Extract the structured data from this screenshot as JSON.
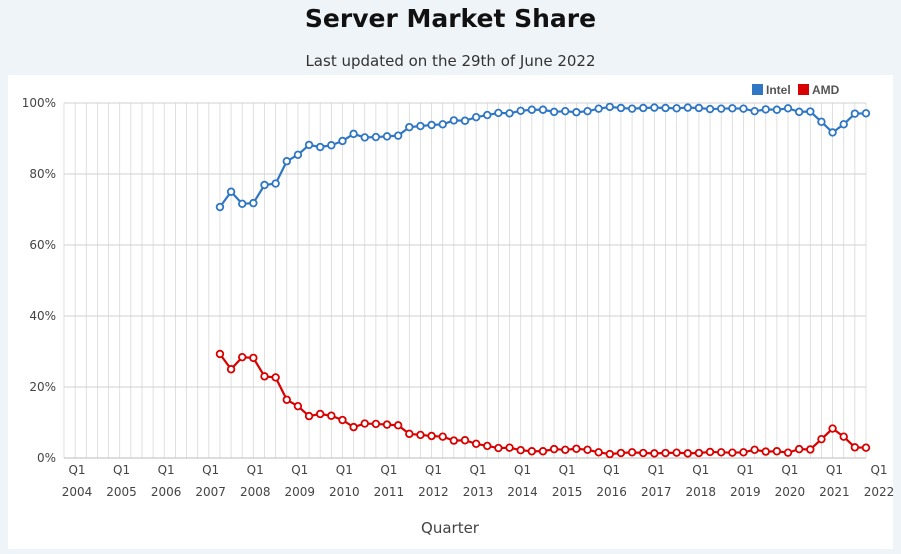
{
  "chart_data": {
    "type": "line",
    "title": "Server Market Share",
    "subtitle": "Last updated on the 29th of June 2022",
    "xlabel": "Quarter",
    "ylabel": "",
    "ylim": [
      0,
      100
    ],
    "y_ticks": [
      "0%",
      "20%",
      "40%",
      "60%",
      "80%",
      "100%"
    ],
    "x_tick_labels": [
      {
        "q": "Q1",
        "year": "2004"
      },
      {
        "q": "Q1",
        "year": "2005"
      },
      {
        "q": "Q1",
        "year": "2006"
      },
      {
        "q": "Q1",
        "year": "2007"
      },
      {
        "q": "Q1",
        "year": "2008"
      },
      {
        "q": "Q1",
        "year": "2009"
      },
      {
        "q": "Q1",
        "year": "2010"
      },
      {
        "q": "Q1",
        "year": "2011"
      },
      {
        "q": "Q1",
        "year": "2012"
      },
      {
        "q": "Q1",
        "year": "2013"
      },
      {
        "q": "Q1",
        "year": "2014"
      },
      {
        "q": "Q1",
        "year": "2015"
      },
      {
        "q": "Q1",
        "year": "2016"
      },
      {
        "q": "Q1",
        "year": "2017"
      },
      {
        "q": "Q1",
        "year": "2018"
      },
      {
        "q": "Q1",
        "year": "2019"
      },
      {
        "q": "Q1",
        "year": "2020"
      },
      {
        "q": "Q1",
        "year": "2021"
      },
      {
        "q": "Q1",
        "year": "2022"
      }
    ],
    "grid": true,
    "legend_position": "top-right",
    "categories": [
      "Q1 2004",
      "Q2 2004",
      "Q3 2004",
      "Q4 2004",
      "Q1 2005",
      "Q2 2005",
      "Q3 2005",
      "Q4 2005",
      "Q1 2006",
      "Q2 2006",
      "Q3 2006",
      "Q4 2006",
      "Q1 2007",
      "Q2 2007",
      "Q3 2007",
      "Q4 2007",
      "Q1 2008",
      "Q2 2008",
      "Q3 2008",
      "Q4 2008",
      "Q1 2009",
      "Q2 2009",
      "Q3 2009",
      "Q4 2009",
      "Q1 2010",
      "Q2 2010",
      "Q3 2010",
      "Q4 2010",
      "Q1 2011",
      "Q2 2011",
      "Q3 2011",
      "Q4 2011",
      "Q1 2012",
      "Q2 2012",
      "Q3 2012",
      "Q4 2012",
      "Q1 2013",
      "Q2 2013",
      "Q3 2013",
      "Q4 2013",
      "Q1 2014",
      "Q2 2014",
      "Q3 2014",
      "Q4 2014",
      "Q1 2015",
      "Q2 2015",
      "Q3 2015",
      "Q4 2015",
      "Q1 2016",
      "Q2 2016",
      "Q3 2016",
      "Q4 2016",
      "Q1 2017",
      "Q2 2017",
      "Q3 2017",
      "Q4 2017",
      "Q1 2018",
      "Q2 2018",
      "Q3 2018",
      "Q4 2018",
      "Q1 2019",
      "Q2 2019",
      "Q3 2019",
      "Q4 2019",
      "Q1 2020",
      "Q2 2020",
      "Q3 2020",
      "Q4 2020",
      "Q1 2021",
      "Q2 2021",
      "Q3 2021",
      "Q4 2021",
      "Q1 2022"
    ],
    "series": [
      {
        "name": "Intel",
        "color": "#2f76c4",
        "values": [
          null,
          null,
          null,
          null,
          null,
          null,
          null,
          null,
          null,
          null,
          null,
          null,
          null,
          null,
          70.7,
          75.0,
          71.6,
          71.8,
          76.9,
          77.3,
          83.6,
          85.4,
          88.2,
          87.6,
          88.1,
          89.3,
          91.3,
          90.3,
          90.4,
          90.6,
          90.8,
          93.2,
          93.5,
          93.8,
          94.0,
          95.1,
          95.0,
          96.0,
          96.6,
          97.2,
          97.1,
          97.8,
          98.1,
          98.1,
          97.5,
          97.7,
          97.4,
          97.7,
          98.4,
          98.9,
          98.6,
          98.4,
          98.6,
          98.7,
          98.6,
          98.5,
          98.7,
          98.6,
          98.3,
          98.4,
          98.5,
          98.4,
          97.7,
          98.2,
          98.1,
          98.5,
          97.5,
          97.6,
          94.7,
          91.7,
          94.0,
          97.0,
          97.1
        ]
      },
      {
        "name": "AMD",
        "color": "#d90000",
        "values": [
          null,
          null,
          null,
          null,
          null,
          null,
          null,
          null,
          null,
          null,
          null,
          null,
          null,
          null,
          29.3,
          25.0,
          28.4,
          28.2,
          23.0,
          22.7,
          16.4,
          14.6,
          11.8,
          12.4,
          11.9,
          10.7,
          8.7,
          9.7,
          9.6,
          9.4,
          9.2,
          6.8,
          6.5,
          6.2,
          6.0,
          4.9,
          5.0,
          4.0,
          3.4,
          2.8,
          2.9,
          2.2,
          1.9,
          1.9,
          2.5,
          2.3,
          2.6,
          2.3,
          1.6,
          1.1,
          1.4,
          1.6,
          1.4,
          1.3,
          1.4,
          1.5,
          1.3,
          1.4,
          1.7,
          1.6,
          1.5,
          1.6,
          2.3,
          1.8,
          1.9,
          1.5,
          2.5,
          2.4,
          5.3,
          8.3,
          6.0,
          3.0,
          2.9
        ]
      }
    ]
  }
}
